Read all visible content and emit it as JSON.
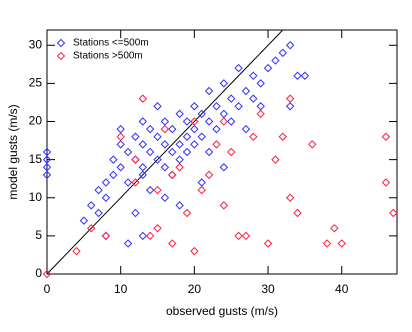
{
  "chart_data": {
    "type": "scatter",
    "x_label": "observed gusts (m/s)",
    "y_label": "model gusts (m/s)",
    "xlim": [
      0,
      47.5
    ],
    "ylim": [
      0,
      32
    ],
    "xticks": [
      0,
      10,
      20,
      30,
      40
    ],
    "yticks": [
      0,
      5,
      10,
      15,
      20,
      25,
      30
    ],
    "legend": "top-left",
    "series": [
      {
        "name": "Stations <=500m",
        "color": "#3333ff",
        "x": [
          0,
          0,
          0,
          0,
          5,
          6,
          7,
          7,
          8,
          8,
          9,
          9,
          10,
          10,
          10,
          11,
          11,
          11,
          12,
          12,
          12,
          13,
          13,
          13,
          13,
          14,
          14,
          14,
          15,
          15,
          15,
          16,
          16,
          16,
          17,
          17,
          17,
          18,
          18,
          18,
          19,
          19,
          19,
          20,
          20,
          20,
          21,
          21,
          22,
          22,
          22,
          23,
          23,
          24,
          24,
          25,
          25,
          26,
          26,
          27,
          27,
          28,
          28,
          29,
          30,
          31,
          32,
          33,
          34,
          35,
          33,
          29,
          24,
          18,
          13,
          8,
          16,
          21
        ],
        "y": [
          13,
          14,
          15,
          16,
          7,
          9,
          8,
          11,
          10,
          12,
          13,
          15,
          14,
          17,
          19,
          12,
          16,
          4,
          8,
          15,
          18,
          14,
          17,
          20,
          13,
          16,
          19,
          11,
          15,
          18,
          22,
          14,
          17,
          20,
          16,
          19,
          13,
          17,
          21,
          15,
          18,
          20,
          16,
          19,
          22,
          17,
          18,
          21,
          20,
          24,
          16,
          19,
          22,
          21,
          25,
          20,
          23,
          22,
          27,
          24,
          19,
          23,
          26,
          25,
          27,
          28,
          29,
          30,
          26,
          26,
          22,
          22,
          14,
          9,
          5,
          5,
          10,
          12
        ]
      },
      {
        "name": "Stations >500m",
        "color": "#ff2244",
        "x": [
          0,
          4,
          6,
          8,
          10,
          12,
          13,
          14,
          15,
          15,
          16,
          17,
          18,
          19,
          20,
          21,
          22,
          23,
          24,
          25,
          26,
          27,
          28,
          29,
          30,
          31,
          32,
          33,
          34,
          36,
          38,
          39,
          40,
          33,
          24,
          20,
          12,
          17,
          46,
          46,
          47
        ],
        "y": [
          0,
          3,
          6,
          5,
          18,
          12,
          23,
          5,
          6,
          11,
          19,
          13,
          14,
          8,
          20,
          11,
          13,
          17,
          20,
          16,
          5,
          5,
          18,
          21,
          4,
          15,
          18,
          10,
          8,
          17,
          4,
          6,
          4,
          23,
          9,
          3,
          15,
          4,
          18,
          12,
          8
        ]
      }
    ]
  }
}
